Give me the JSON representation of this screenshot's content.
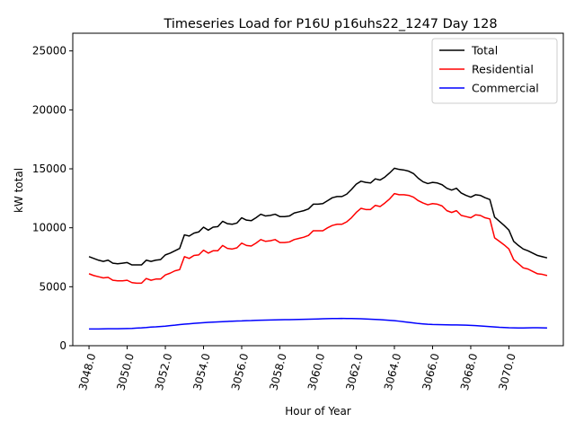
{
  "chart_data": {
    "type": "line",
    "title": "Timeseries Load for P16U p16uhs22_1247  Day 128",
    "xlabel": "Hour of Year",
    "ylabel": "kW total",
    "xlim": [
      3047.15,
      3072.85
    ],
    "ylim": [
      0,
      26500
    ],
    "x_ticks": [
      3048.0,
      3050.0,
      3052.0,
      3054.0,
      3056.0,
      3058.0,
      3060.0,
      3062.0,
      3064.0,
      3066.0,
      3068.0,
      3070.0
    ],
    "x_tick_labels": [
      "3048.0",
      "3050.0",
      "3052.0",
      "3054.0",
      "3056.0",
      "3058.0",
      "3060.0",
      "3062.0",
      "3064.0",
      "3066.0",
      "3068.0",
      "3070.0"
    ],
    "y_ticks": [
      0,
      5000,
      10000,
      15000,
      20000,
      25000
    ],
    "y_tick_labels": [
      "0",
      "5000",
      "10000",
      "15000",
      "20000",
      "25000"
    ],
    "legend_position": "top-right",
    "grid": false,
    "x_start": 3048.0,
    "x_step": 0.25,
    "series": [
      {
        "name": "Total",
        "color": "#000000",
        "values": [
          7550,
          7400,
          7250,
          7150,
          7250,
          7000,
          6950,
          7000,
          7050,
          6850,
          6850,
          6850,
          7250,
          7150,
          7250,
          7300,
          7700,
          7850,
          8050,
          8250,
          9400,
          9300,
          9550,
          9650,
          10050,
          9800,
          10050,
          10100,
          10550,
          10350,
          10300,
          10400,
          10850,
          10650,
          10600,
          10850,
          11150,
          11000,
          11050,
          11150,
          10950,
          10950,
          11000,
          11250,
          11350,
          11450,
          11600,
          12000,
          12000,
          12050,
          12300,
          12550,
          12650,
          12650,
          12850,
          13250,
          13700,
          13950,
          13850,
          13800,
          14150,
          14050,
          14300,
          14650,
          15050,
          14950,
          14900,
          14800,
          14600,
          14200,
          13900,
          13750,
          13850,
          13800,
          13650,
          13350,
          13200,
          13350,
          12950,
          12750,
          12600,
          12800,
          12750,
          12550,
          12400,
          10900,
          10550,
          10200,
          9800,
          8850,
          8500,
          8200,
          8050,
          7850,
          7650,
          7550,
          7450
        ]
      },
      {
        "name": "Residential",
        "color": "#ff0000",
        "values": [
          6100,
          5950,
          5850,
          5750,
          5800,
          5550,
          5500,
          5500,
          5550,
          5350,
          5300,
          5300,
          5700,
          5550,
          5650,
          5650,
          6000,
          6150,
          6350,
          6450,
          7550,
          7400,
          7650,
          7700,
          8100,
          7850,
          8050,
          8050,
          8500,
          8250,
          8200,
          8300,
          8700,
          8500,
          8450,
          8700,
          9000,
          8850,
          8900,
          9000,
          8750,
          8750,
          8800,
          9000,
          9100,
          9200,
          9350,
          9750,
          9750,
          9750,
          10000,
          10200,
          10300,
          10300,
          10500,
          10850,
          11300,
          11650,
          11550,
          11550,
          11900,
          11800,
          12100,
          12450,
          12900,
          12800,
          12800,
          12750,
          12600,
          12300,
          12100,
          11950,
          12050,
          12000,
          11850,
          11450,
          11300,
          11450,
          11050,
          10950,
          10850,
          11100,
          11050,
          10850,
          10750,
          9150,
          8850,
          8550,
          8200,
          7300,
          6950,
          6600,
          6500,
          6300,
          6100,
          6050,
          5950
        ]
      },
      {
        "name": "Commercial",
        "color": "#0000ff",
        "values": [
          1420,
          1420,
          1420,
          1430,
          1440,
          1440,
          1440,
          1450,
          1460,
          1470,
          1490,
          1510,
          1540,
          1580,
          1600,
          1630,
          1660,
          1700,
          1740,
          1790,
          1830,
          1860,
          1890,
          1920,
          1950,
          1980,
          2000,
          2020,
          2040,
          2060,
          2080,
          2090,
          2100,
          2120,
          2130,
          2150,
          2160,
          2170,
          2180,
          2190,
          2200,
          2210,
          2210,
          2220,
          2230,
          2240,
          2250,
          2260,
          2270,
          2280,
          2290,
          2300,
          2300,
          2310,
          2300,
          2300,
          2290,
          2280,
          2270,
          2250,
          2230,
          2210,
          2180,
          2150,
          2120,
          2080,
          2030,
          1980,
          1930,
          1880,
          1850,
          1820,
          1800,
          1790,
          1780,
          1770,
          1760,
          1760,
          1750,
          1740,
          1720,
          1700,
          1680,
          1650,
          1620,
          1590,
          1560,
          1540,
          1520,
          1510,
          1500,
          1500,
          1510,
          1520,
          1520,
          1510,
          1500
        ]
      }
    ]
  }
}
